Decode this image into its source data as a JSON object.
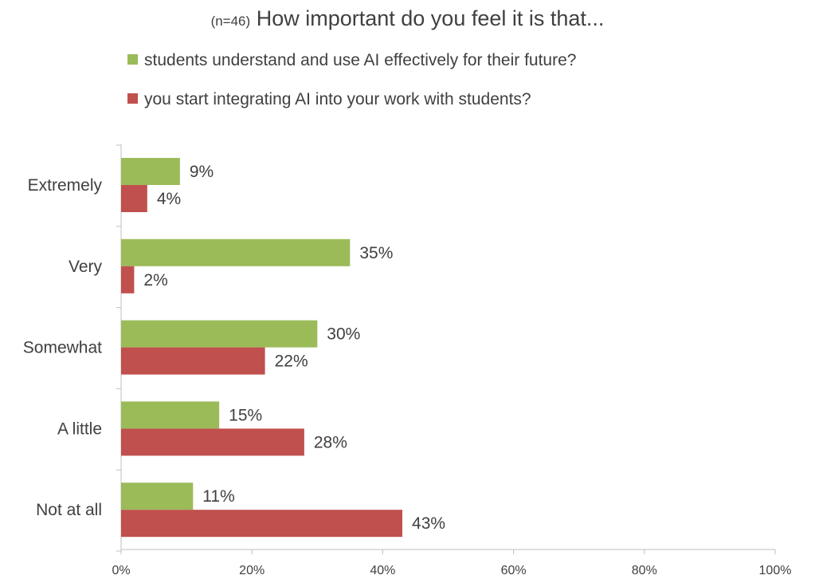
{
  "chart_data": {
    "type": "bar",
    "orientation": "horizontal",
    "title_prefix": "(n=46)",
    "title": "How important do you feel it is that...",
    "categories": [
      "Extremely",
      "Very",
      "Somewhat",
      "A little",
      "Not at all"
    ],
    "series": [
      {
        "name": "students understand and use AI effectively for their future?",
        "color": "#9bbb59",
        "values": [
          9,
          35,
          30,
          15,
          11
        ]
      },
      {
        "name": "you start integrating AI into your work with students?",
        "color": "#c0504d",
        "values": [
          4,
          2,
          22,
          28,
          43
        ]
      }
    ],
    "xlim": [
      0,
      100
    ],
    "xticks": [
      0,
      20,
      40,
      60,
      80,
      100
    ],
    "tick_suffix": "%",
    "value_suffix": "%",
    "grid": false,
    "legend_position": "top"
  }
}
